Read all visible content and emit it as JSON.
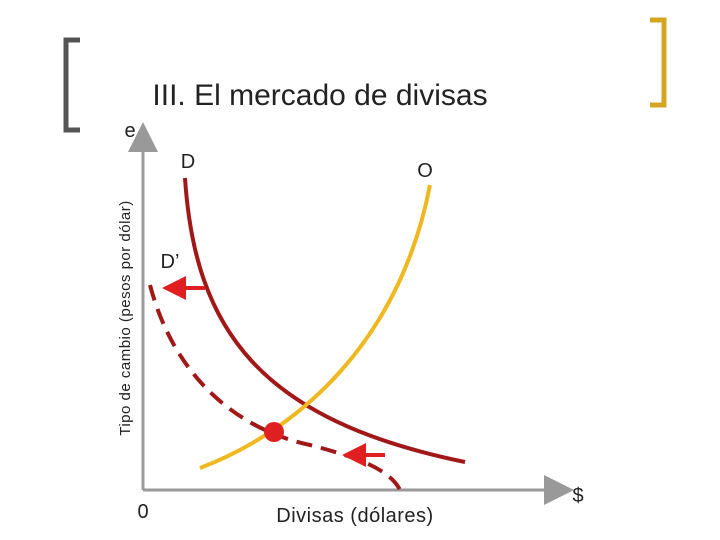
{
  "header": {
    "title": "III. El mercado de divisas"
  },
  "diagram": {
    "y_axis_symbol": "e",
    "y_axis_label": "Tipo de cambio (pesos por dólar)",
    "origin": "0",
    "x_axis_label": "Divisas (dólares)",
    "x_axis_symbol": "$",
    "curves": [
      {
        "label": "D"
      },
      {
        "label": "O"
      },
      {
        "label": "D’"
      }
    ]
  }
}
